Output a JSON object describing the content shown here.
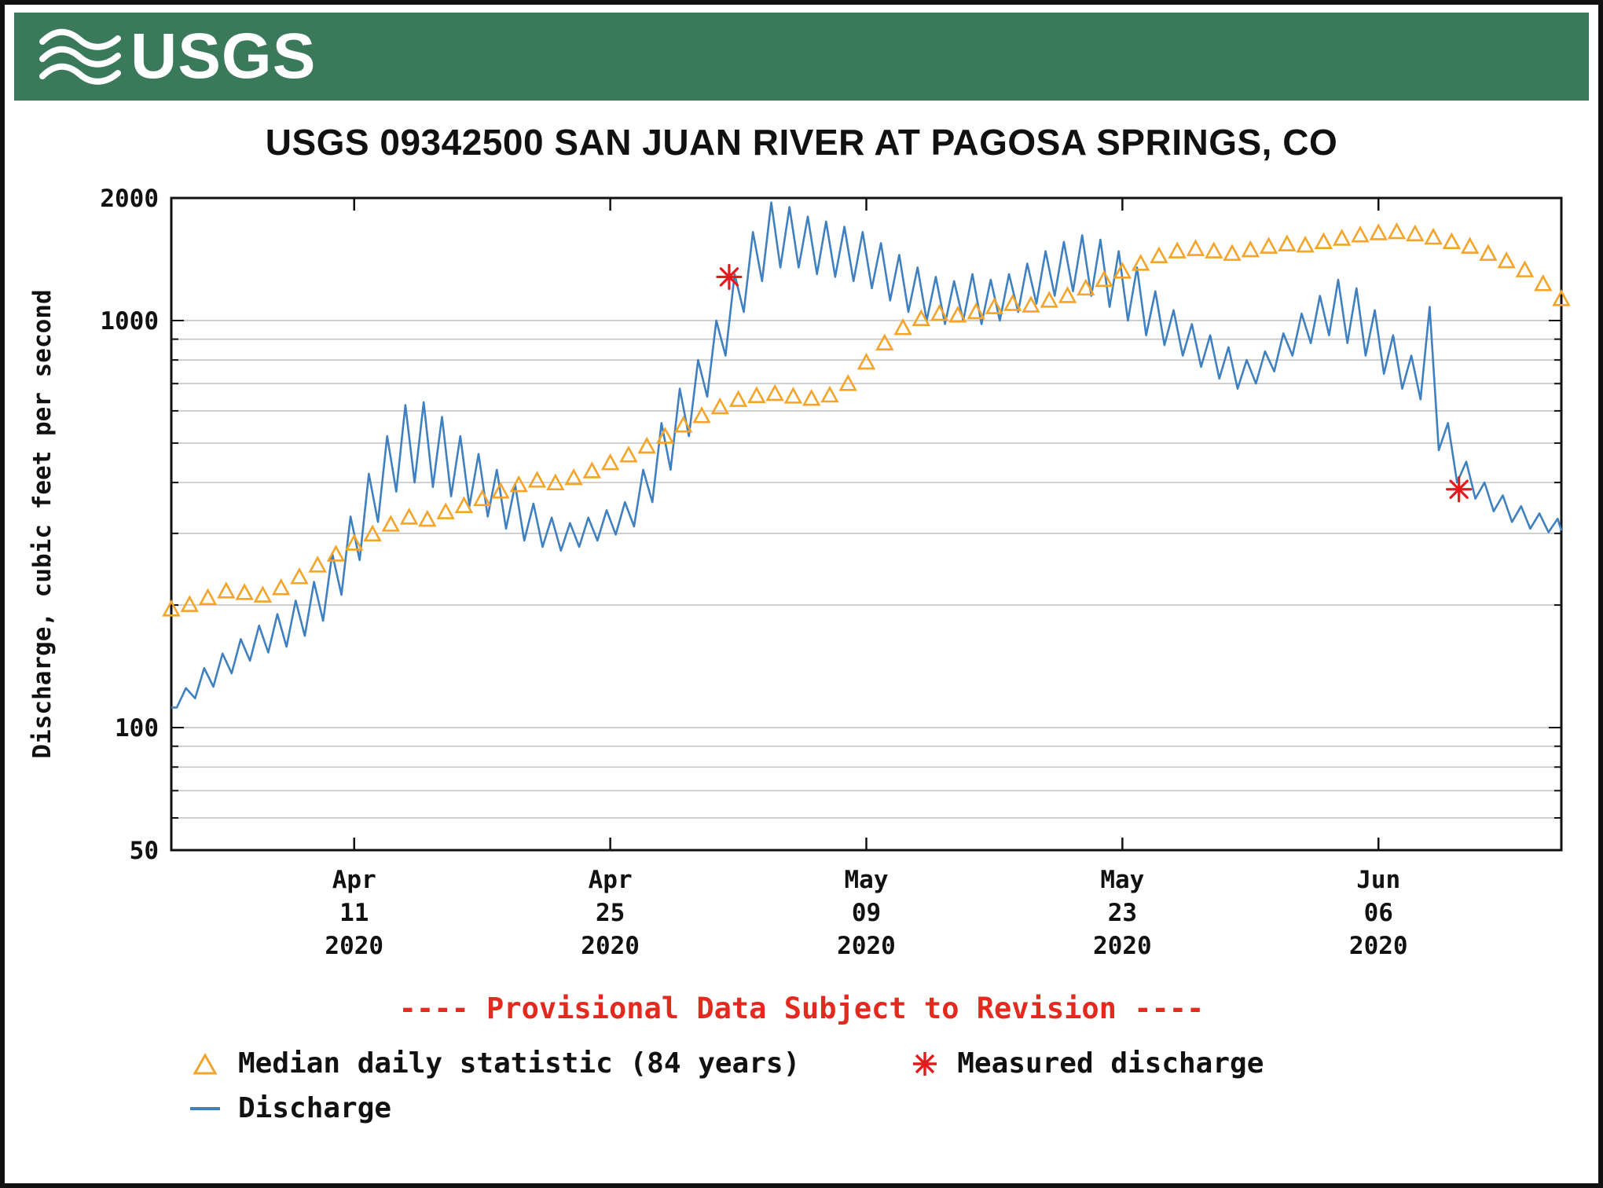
{
  "header": {
    "logo_text": "USGS"
  },
  "provisional_note": "---- Provisional Data Subject to Revision ----",
  "legend": {
    "median_label": "Median daily statistic (84 years)",
    "measured_label": "Measured discharge",
    "discharge_label": "Discharge"
  },
  "colors": {
    "header_green": "#3A7A5B",
    "gridline_gray": "#c4c4c4",
    "provisional_red": "#E22B1E"
  },
  "chart_data": {
    "type": "line",
    "title": "USGS 09342500 SAN JUAN RIVER AT PAGOSA SPRINGS, CO",
    "ylabel": "Discharge, cubic feet per second",
    "y_scale": "log",
    "ylim": [
      50,
      2000
    ],
    "x_domain_days": [
      0,
      76
    ],
    "grid": "horizontal-log",
    "legend_position": "bottom-left",
    "y_ticks": [
      {
        "value": 2000,
        "label": "2000"
      },
      {
        "value": 1000,
        "label": "1000"
      },
      {
        "value": 100,
        "label": "100"
      },
      {
        "value": 50,
        "label": "50"
      }
    ],
    "y_gridlines": [
      60,
      70,
      80,
      90,
      100,
      200,
      300,
      400,
      500,
      600,
      700,
      800,
      900,
      1000
    ],
    "x_ticks": [
      {
        "day": 10,
        "lines": [
          "Apr",
          "11",
          "2020"
        ]
      },
      {
        "day": 24,
        "lines": [
          "Apr",
          "25",
          "2020"
        ]
      },
      {
        "day": 38,
        "lines": [
          "May",
          "09",
          "2020"
        ]
      },
      {
        "day": 52,
        "lines": [
          "May",
          "23",
          "2020"
        ]
      },
      {
        "day": 66,
        "lines": [
          "Jun",
          "06",
          "2020"
        ]
      }
    ],
    "series": {
      "discharge": {
        "name": "Discharge",
        "color": "#3F80C0",
        "daily_low_high": [
          [
            112,
            125
          ],
          [
            118,
            140
          ],
          [
            126,
            152
          ],
          [
            136,
            165
          ],
          [
            146,
            178
          ],
          [
            153,
            190
          ],
          [
            158,
            205
          ],
          [
            168,
            228
          ],
          [
            183,
            268
          ],
          [
            212,
            330
          ],
          [
            258,
            420
          ],
          [
            320,
            520
          ],
          [
            380,
            620
          ],
          [
            400,
            630
          ],
          [
            390,
            580
          ],
          [
            370,
            520
          ],
          [
            350,
            470
          ],
          [
            330,
            430
          ],
          [
            308,
            395
          ],
          [
            288,
            355
          ],
          [
            278,
            328
          ],
          [
            272,
            318
          ],
          [
            278,
            328
          ],
          [
            288,
            342
          ],
          [
            298,
            358
          ],
          [
            312,
            430
          ],
          [
            358,
            560
          ],
          [
            430,
            680
          ],
          [
            520,
            800
          ],
          [
            650,
            1000
          ],
          [
            820,
            1300
          ],
          [
            1050,
            1650
          ],
          [
            1250,
            1950
          ],
          [
            1350,
            1900
          ],
          [
            1350,
            1800
          ],
          [
            1300,
            1750
          ],
          [
            1280,
            1700
          ],
          [
            1250,
            1650
          ],
          [
            1200,
            1550
          ],
          [
            1120,
            1450
          ],
          [
            1050,
            1350
          ],
          [
            1000,
            1280
          ],
          [
            980,
            1250
          ],
          [
            1000,
            1300
          ],
          [
            980,
            1260
          ],
          [
            1000,
            1300
          ],
          [
            1050,
            1380
          ],
          [
            1100,
            1480
          ],
          [
            1150,
            1560
          ],
          [
            1180,
            1620
          ],
          [
            1150,
            1580
          ],
          [
            1080,
            1480
          ],
          [
            1000,
            1350
          ],
          [
            920,
            1180
          ],
          [
            870,
            1060
          ],
          [
            820,
            980
          ],
          [
            770,
            920
          ],
          [
            720,
            860
          ],
          [
            680,
            800
          ],
          [
            700,
            840
          ],
          [
            750,
            930
          ],
          [
            820,
            1040
          ],
          [
            880,
            1150
          ],
          [
            920,
            1260
          ],
          [
            880,
            1200
          ],
          [
            820,
            1060
          ],
          [
            740,
            920
          ],
          [
            680,
            820
          ],
          [
            640,
            1080
          ],
          [
            480,
            560
          ],
          [
            400,
            450
          ],
          [
            365,
            400
          ],
          [
            340,
            372
          ],
          [
            320,
            350
          ],
          [
            308,
            336
          ],
          [
            302,
            326
          ],
          [
            305,
            330
          ]
        ]
      },
      "median": {
        "name": "Median daily statistic (84 years)",
        "color": "#F4A428",
        "daily_values": [
          195,
          200,
          208,
          216,
          214,
          211,
          220,
          234,
          250,
          266,
          283,
          298,
          315,
          328,
          324,
          338,
          350,
          364,
          380,
          394,
          404,
          398,
          410,
          426,
          446,
          466,
          490,
          518,
          552,
          582,
          612,
          638,
          652,
          660,
          650,
          642,
          654,
          698,
          788,
          878,
          958,
          1008,
          1038,
          1028,
          1048,
          1078,
          1098,
          1088,
          1118,
          1148,
          1198,
          1258,
          1318,
          1378,
          1438,
          1478,
          1498,
          1478,
          1458,
          1488,
          1518,
          1538,
          1528,
          1558,
          1588,
          1618,
          1638,
          1648,
          1628,
          1598,
          1558,
          1518,
          1458,
          1398,
          1328,
          1228,
          1128
        ]
      },
      "measured": {
        "name": "Measured discharge",
        "color": "#E41A1C",
        "points": [
          [
            30.5,
            1280
          ],
          [
            70.4,
            385
          ]
        ]
      }
    }
  }
}
